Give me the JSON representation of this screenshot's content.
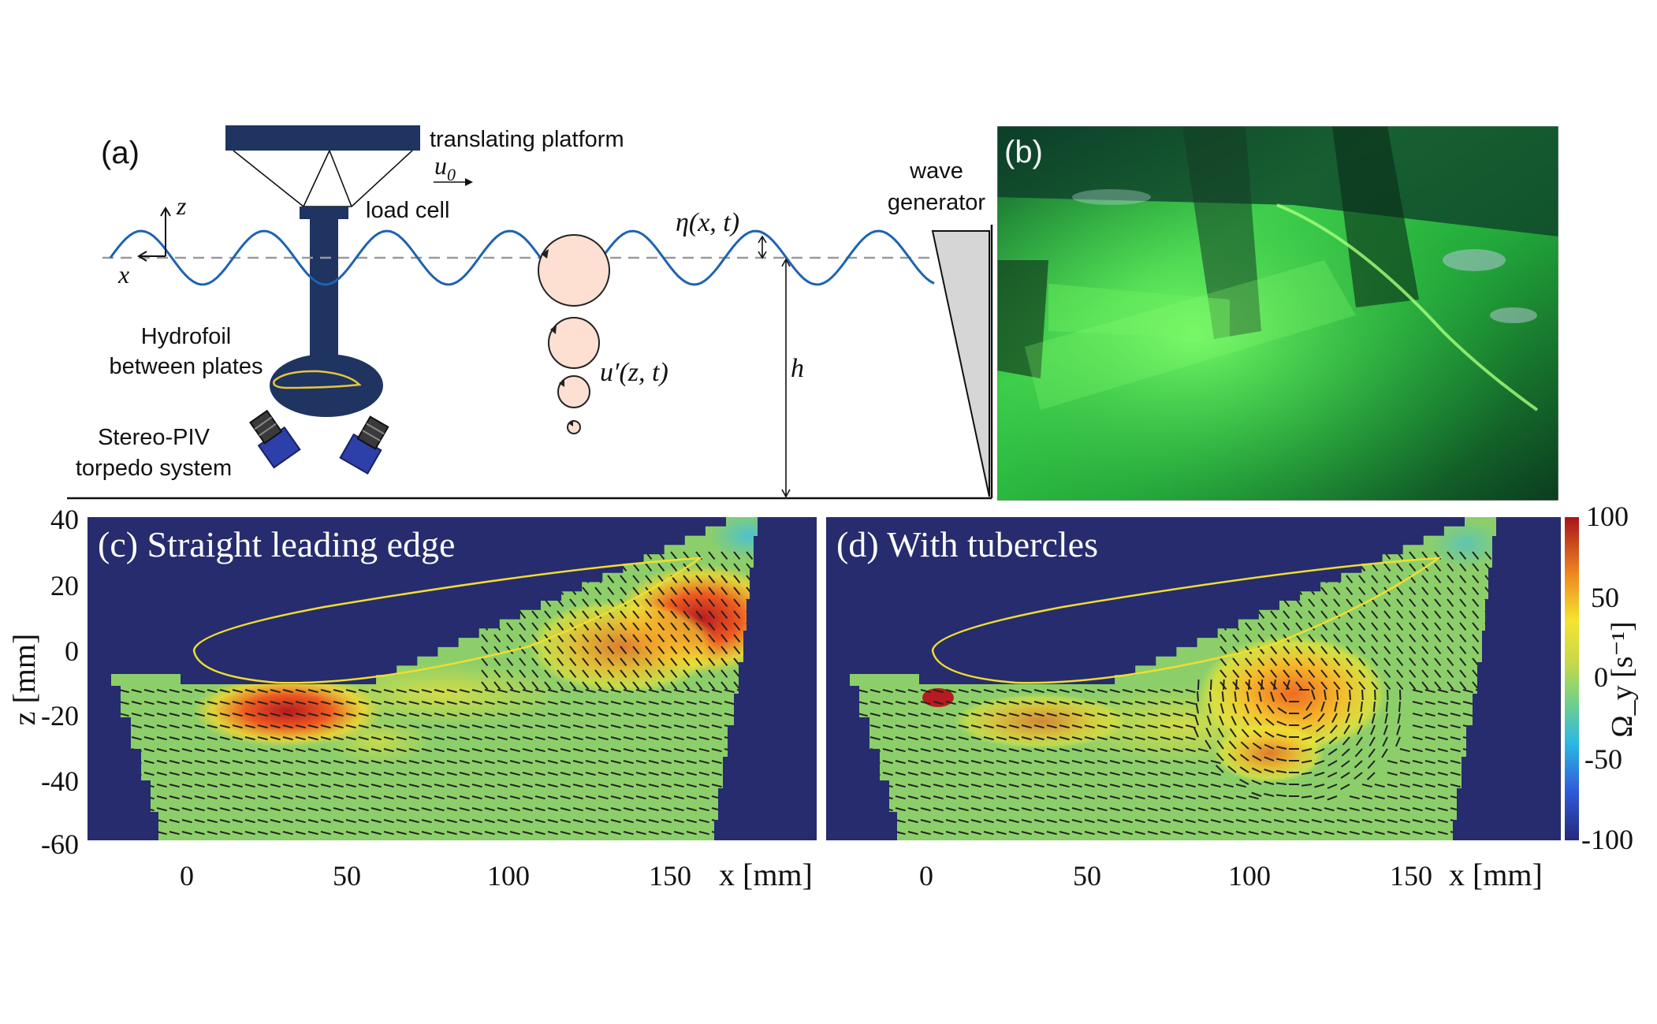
{
  "panel_a": {
    "label": "(a)",
    "platform_label": "translating platform",
    "velocity_label": "u",
    "velocity_sub": "0",
    "load_cell_label": "load cell",
    "axis_z": "z",
    "axis_x": "x",
    "elevation_label": "η(x, t)",
    "depth_label": "h",
    "orbital_label": "u′(z, t)",
    "hydrofoil_label_1": "Hydrofoil",
    "hydrofoil_label_2": "between plates",
    "piv_label_1": "Stereo-PIV",
    "piv_label_2": "torpedo system",
    "wave_gen_label_1": "wave",
    "wave_gen_label_2": "generator"
  },
  "panel_b": {
    "label": "(b)"
  },
  "panel_c": {
    "title": "(c) Straight leading edge"
  },
  "panel_d": {
    "title": "(d) With tubercles"
  },
  "axes": {
    "z_label": "z [mm]",
    "x_label": "x [mm]",
    "z_ticks": [
      "40",
      "20",
      "0",
      "-20",
      "-40",
      "-60"
    ],
    "x_ticks": [
      "0",
      "50",
      "100",
      "150"
    ]
  },
  "colorbar": {
    "label": "Ω_y [s⁻¹]",
    "ticks": [
      "100",
      "50",
      "0",
      "-50",
      "-100"
    ],
    "range": [
      -100,
      100
    ]
  },
  "colors": {
    "background_field": "#262c6e",
    "foil": "#1f3461",
    "wave": "#1e63b0",
    "outline": "#f2dd2f"
  }
}
